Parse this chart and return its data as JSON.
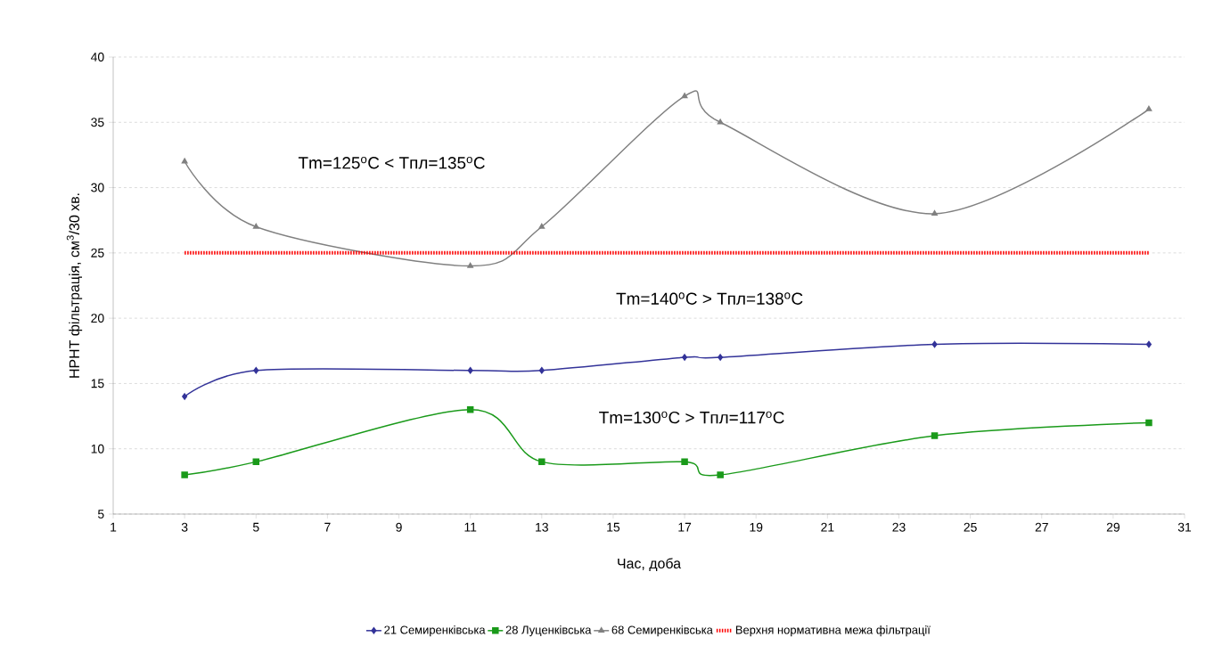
{
  "chart_data": {
    "type": "line",
    "xlabel": "Час, доба",
    "ylabel": "НРНТ фільтрація, см$^{3}$/30 хв.",
    "x": [
      3,
      5,
      11,
      13,
      17,
      18,
      24,
      30
    ],
    "series": [
      {
        "name": "21 Семиренківська",
        "color": "#333399",
        "marker": "diamond",
        "values": [
          14,
          16,
          16,
          16,
          17,
          17,
          18,
          18
        ]
      },
      {
        "name": "28 Луценківська",
        "color": "#1a9a1a",
        "marker": "square",
        "values": [
          8,
          9,
          13,
          9,
          9,
          8,
          11,
          12
        ]
      },
      {
        "name": "68 Семиренківська",
        "color": "#808080",
        "marker": "triangle",
        "values": [
          32,
          27,
          24,
          27,
          37,
          35,
          28,
          36
        ]
      },
      {
        "name": "Верхня нормативна межа фільтрації",
        "color": "#ff0000",
        "marker": "none",
        "line_style": "dotted",
        "x": [
          3,
          30
        ],
        "values": [
          25,
          25
        ]
      }
    ],
    "xlim": [
      1,
      31
    ],
    "xticks": [
      1,
      3,
      5,
      7,
      9,
      11,
      13,
      15,
      17,
      19,
      21,
      23,
      25,
      27,
      29,
      31
    ],
    "ylim": [
      5,
      40
    ],
    "yticks": [
      5,
      10,
      15,
      20,
      25,
      30,
      35,
      40
    ],
    "grid": "y",
    "legend": "bottom",
    "annotations": [
      "Tm=125$^{o}$C < Tпл=135$^{o}$C",
      "Tm=140$^{o}$C > Tпл=138$^{o}$C",
      "Tm=130$^{o}$C > Tпл=117$^{o}$C"
    ]
  }
}
